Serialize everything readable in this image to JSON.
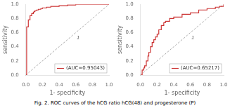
{
  "chart_data": [
    {
      "type": "step",
      "xlabel": "1- specificity",
      "ylabel": "sensitivity",
      "x": [
        0.0,
        0.01,
        0.03,
        0.05,
        0.07,
        0.09,
        0.1,
        0.11,
        0.13,
        0.15,
        0.18,
        0.2,
        0.25,
        0.3,
        0.4,
        0.5,
        0.6,
        0.65,
        1.0
      ],
      "series": [
        {
          "name": "(AUC=0.95043)",
          "color": "#cc3333",
          "values": [
            0.0,
            0.68,
            0.78,
            0.84,
            0.87,
            0.89,
            0.9,
            0.91,
            0.92,
            0.93,
            0.94,
            0.95,
            0.96,
            0.97,
            0.98,
            0.99,
            1.0,
            1.0,
            1.0
          ]
        }
      ],
      "xlim": [
        0,
        1
      ],
      "ylim": [
        0,
        1
      ],
      "xticks": [
        {
          "value": 0.0,
          "label": "0.0"
        },
        0.2,
        0.4,
        0.6,
        0.8,
        {
          "value": 1.0,
          "label": "1.0"
        }
      ],
      "yticks": [
        {
          "value": 0.0,
          "label": "0.0"
        },
        0.2,
        0.4,
        0.6,
        0.8,
        {
          "value": 1.0,
          "label": "1.0"
        }
      ],
      "grid": false,
      "legend": "lower right",
      "annotations": [
        {
          "type": "line",
          "x": [
            0,
            1
          ],
          "y": [
            0,
            1
          ],
          "color": "#999999",
          "line_style": "dashed"
        },
        {
          "text": "1",
          "x": 0.63,
          "y": 0.52,
          "color": "#666666"
        }
      ]
    },
    {
      "type": "step",
      "xlabel": "1- specificity",
      "ylabel": "sensitivity",
      "x": [
        0.0,
        0.02,
        0.04,
        0.05,
        0.07,
        0.09,
        0.1,
        0.12,
        0.14,
        0.16,
        0.18,
        0.2,
        0.22,
        0.25,
        0.28,
        0.3,
        0.35,
        0.4,
        0.5,
        0.6,
        0.7,
        0.8,
        0.9,
        0.95,
        1.0
      ],
      "series": [
        {
          "name": "(AUC=0.65217)",
          "color": "#cc3333",
          "values": [
            0.0,
            0.07,
            0.1,
            0.13,
            0.2,
            0.27,
            0.32,
            0.4,
            0.46,
            0.5,
            0.54,
            0.58,
            0.64,
            0.7,
            0.74,
            0.76,
            0.8,
            0.82,
            0.86,
            0.88,
            0.92,
            0.94,
            0.96,
            0.97,
            1.0
          ]
        }
      ],
      "xlim": [
        0,
        1
      ],
      "ylim": [
        0,
        1
      ],
      "xticks": [
        {
          "value": 0.0,
          "label": "0.0"
        },
        0.2,
        0.4,
        0.6,
        0.8,
        {
          "value": 1.0,
          "label": "1.0"
        }
      ],
      "yticks": [
        {
          "value": 0.0,
          "label": "0.0"
        },
        0.2,
        0.4,
        0.6,
        0.8,
        {
          "value": 1.0,
          "label": "1.0"
        }
      ],
      "grid": false,
      "legend": "lower right",
      "annotations": [
        {
          "type": "line",
          "x": [
            0,
            1
          ],
          "y": [
            0,
            1
          ],
          "color": "#999999",
          "line_style": "dashed"
        },
        {
          "text": "1",
          "x": 0.63,
          "y": 0.52,
          "color": "#666666"
        }
      ]
    }
  ],
  "caption": "Fig. 2. ROC curves of the hCG ratio hCG(48) and progesterone (P)"
}
